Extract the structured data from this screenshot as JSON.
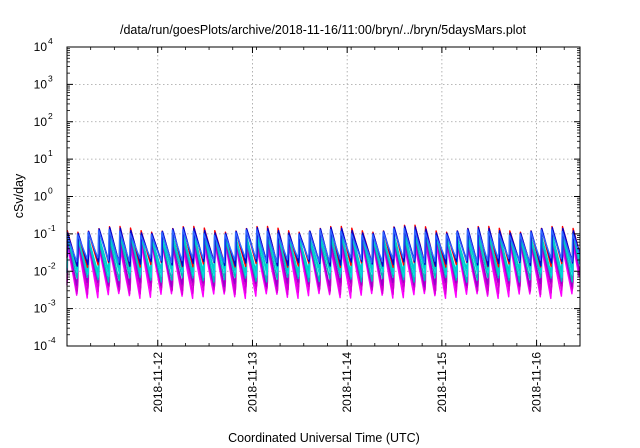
{
  "chart_data": {
    "type": "line",
    "title": "/data/run/goesPlots/archive/2018-11-16/11:00/bryn/../bryn/5daysMars.plot",
    "xlabel": "Coordinated Universal Time (UTC)",
    "ylabel": "cSv/day",
    "xlim": [
      "2018-11-11 01:00",
      "2018-11-16 11:00"
    ],
    "ylim": [
      0.0001,
      10000
    ],
    "yscale": "log",
    "grid": true,
    "x_ticks": [
      {
        "value": "2018-11-12",
        "label": "2018-11-12"
      },
      {
        "value": "2018-11-13",
        "label": "2018-11-13"
      },
      {
        "value": "2018-11-14",
        "label": "2018-11-14"
      },
      {
        "value": "2018-11-15",
        "label": "2018-11-15"
      },
      {
        "value": "2018-11-16",
        "label": "2018-11-16"
      }
    ],
    "y_ticks": [
      {
        "value": 0.0001,
        "base": "10",
        "exp": "-4"
      },
      {
        "value": 0.001,
        "base": "10",
        "exp": "-3"
      },
      {
        "value": 0.01,
        "base": "10",
        "exp": "-2"
      },
      {
        "value": 0.1,
        "base": "10",
        "exp": "-1"
      },
      {
        "value": 1,
        "base": "10",
        "exp": "0"
      },
      {
        "value": 10,
        "base": "10",
        "exp": "1"
      },
      {
        "value": 100,
        "base": "10",
        "exp": "2"
      },
      {
        "value": 1000,
        "base": "10",
        "exp": "3"
      },
      {
        "value": 10000,
        "base": "10",
        "exp": "4"
      }
    ],
    "cycle_hours": 2.67,
    "series": [
      {
        "color": "#ff00ff",
        "peak": 0.055,
        "trough": 0.0022
      },
      {
        "color": "#dd00dd",
        "peak": 0.06,
        "trough": 0.0028
      },
      {
        "color": "#cc00cc",
        "peak": 0.065,
        "trough": 0.0035
      },
      {
        "color": "#9900cc",
        "peak": 0.07,
        "trough": 0.0045
      },
      {
        "color": "#00bbbb",
        "peak": 0.08,
        "trough": 0.006
      },
      {
        "color": "#00dddd",
        "peak": 0.09,
        "trough": 0.008
      },
      {
        "color": "#00cccc",
        "peak": 0.1,
        "trough": 0.011
      },
      {
        "color": "#ff0000",
        "peak": 0.135,
        "trough": 0.015
      },
      {
        "color": "#0000cc",
        "peak": 0.125,
        "trough": 0.016
      },
      {
        "color": "#3366ff",
        "peak": 0.11,
        "trough": 0.02
      }
    ]
  }
}
